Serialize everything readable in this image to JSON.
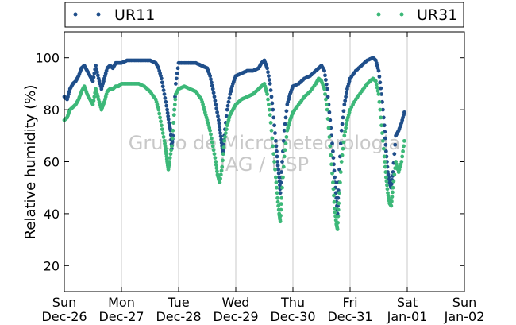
{
  "chart_data": {
    "type": "scatter",
    "ylabel": "Relative humidity (%)",
    "xlabel": "",
    "ylim": [
      10,
      110
    ],
    "yticks": [
      20,
      40,
      60,
      80,
      100
    ],
    "x_ticks": [
      {
        "day": "Sun",
        "date": "Dec-26"
      },
      {
        "day": "Mon",
        "date": "Dec-27"
      },
      {
        "day": "Tue",
        "date": "Dec-28"
      },
      {
        "day": "Wed",
        "date": "Dec-29"
      },
      {
        "day": "Thu",
        "date": "Dec-30"
      },
      {
        "day": "Fri",
        "date": "Dec-31"
      },
      {
        "day": "Sat",
        "date": "Jan-01"
      },
      {
        "day": "Sun",
        "date": "Jan-02"
      }
    ],
    "grid": "vertical",
    "legend": "top",
    "watermark": [
      "Grupo de Micrometeorologia",
      "IAG / USP"
    ],
    "series": [
      {
        "name": "UR11",
        "color": "#1f4e8a",
        "points": [
          [
            0.0,
            85
          ],
          [
            0.05,
            84
          ],
          [
            0.1,
            88
          ],
          [
            0.15,
            90
          ],
          [
            0.2,
            91
          ],
          [
            0.25,
            93
          ],
          [
            0.3,
            96
          ],
          [
            0.35,
            97
          ],
          [
            0.4,
            95
          ],
          [
            0.45,
            93
          ],
          [
            0.5,
            91
          ],
          [
            0.55,
            97
          ],
          [
            0.6,
            92
          ],
          [
            0.65,
            88
          ],
          [
            0.7,
            92
          ],
          [
            0.75,
            96
          ],
          [
            0.8,
            97
          ],
          [
            0.85,
            96
          ],
          [
            0.9,
            98
          ],
          [
            0.95,
            98
          ],
          [
            1.0,
            98
          ],
          [
            1.1,
            99
          ],
          [
            1.2,
            99
          ],
          [
            1.3,
            99
          ],
          [
            1.4,
            99
          ],
          [
            1.5,
            99
          ],
          [
            1.6,
            98
          ],
          [
            1.65,
            96
          ],
          [
            1.7,
            92
          ],
          [
            1.75,
            86
          ],
          [
            1.8,
            80
          ],
          [
            1.83,
            75
          ],
          [
            1.86,
            72
          ],
          [
            1.88,
            65
          ],
          [
            1.9,
            70
          ],
          [
            1.95,
            90
          ],
          [
            2.0,
            98
          ],
          [
            2.1,
            98
          ],
          [
            2.2,
            98
          ],
          [
            2.3,
            98
          ],
          [
            2.4,
            97
          ],
          [
            2.5,
            96
          ],
          [
            2.55,
            93
          ],
          [
            2.6,
            88
          ],
          [
            2.65,
            82
          ],
          [
            2.7,
            76
          ],
          [
            2.73,
            71
          ],
          [
            2.76,
            66
          ],
          [
            2.78,
            63
          ],
          [
            2.8,
            70
          ],
          [
            2.85,
            80
          ],
          [
            2.9,
            86
          ],
          [
            2.95,
            90
          ],
          [
            3.0,
            93
          ],
          [
            3.1,
            94
          ],
          [
            3.2,
            95
          ],
          [
            3.3,
            95
          ],
          [
            3.4,
            96
          ],
          [
            3.45,
            98
          ],
          [
            3.5,
            99
          ],
          [
            3.55,
            96
          ],
          [
            3.6,
            90
          ],
          [
            3.65,
            80
          ],
          [
            3.7,
            68
          ],
          [
            3.73,
            60
          ],
          [
            3.76,
            54
          ],
          [
            3.78,
            48
          ],
          [
            3.8,
            56
          ],
          [
            3.85,
            72
          ],
          [
            3.9,
            82
          ],
          [
            3.95,
            86
          ],
          [
            4.0,
            89
          ],
          [
            4.1,
            90
          ],
          [
            4.2,
            92
          ],
          [
            4.3,
            93
          ],
          [
            4.4,
            95
          ],
          [
            4.45,
            96
          ],
          [
            4.5,
            97
          ],
          [
            4.55,
            95
          ],
          [
            4.6,
            88
          ],
          [
            4.65,
            76
          ],
          [
            4.7,
            64
          ],
          [
            4.73,
            54
          ],
          [
            4.76,
            46
          ],
          [
            4.78,
            40
          ],
          [
            4.8,
            52
          ],
          [
            4.85,
            72
          ],
          [
            4.9,
            82
          ],
          [
            4.95,
            88
          ],
          [
            5.0,
            92
          ],
          [
            5.1,
            95
          ],
          [
            5.2,
            97
          ],
          [
            5.3,
            99
          ],
          [
            5.4,
            100
          ],
          [
            5.45,
            99
          ],
          [
            5.5,
            95
          ],
          [
            5.55,
            86
          ],
          [
            5.6,
            74
          ],
          [
            5.63,
            64
          ],
          [
            5.66,
            56
          ],
          [
            5.69,
            52
          ],
          [
            5.72,
            50
          ],
          [
            5.75,
            56
          ],
          [
            5.8,
            70
          ],
          [
            5.85,
            72
          ],
          [
            5.9,
            75
          ],
          [
            5.95,
            79
          ]
        ]
      },
      {
        "name": "UR31",
        "color": "#3cb878",
        "points": [
          [
            0.0,
            76
          ],
          [
            0.05,
            77
          ],
          [
            0.1,
            80
          ],
          [
            0.15,
            81
          ],
          [
            0.2,
            82
          ],
          [
            0.25,
            84
          ],
          [
            0.3,
            87
          ],
          [
            0.35,
            89
          ],
          [
            0.4,
            86
          ],
          [
            0.45,
            84
          ],
          [
            0.5,
            82
          ],
          [
            0.55,
            88
          ],
          [
            0.6,
            84
          ],
          [
            0.65,
            80
          ],
          [
            0.7,
            83
          ],
          [
            0.75,
            87
          ],
          [
            0.8,
            88
          ],
          [
            0.85,
            88
          ],
          [
            0.9,
            89
          ],
          [
            0.95,
            89
          ],
          [
            1.0,
            90
          ],
          [
            1.1,
            90
          ],
          [
            1.2,
            90
          ],
          [
            1.3,
            90
          ],
          [
            1.4,
            89
          ],
          [
            1.5,
            87
          ],
          [
            1.6,
            84
          ],
          [
            1.65,
            80
          ],
          [
            1.7,
            74
          ],
          [
            1.75,
            68
          ],
          [
            1.78,
            64
          ],
          [
            1.8,
            60
          ],
          [
            1.82,
            57
          ],
          [
            1.84,
            60
          ],
          [
            1.88,
            66
          ],
          [
            1.92,
            78
          ],
          [
            1.95,
            86
          ],
          [
            2.0,
            88
          ],
          [
            2.1,
            89
          ],
          [
            2.2,
            88
          ],
          [
            2.3,
            87
          ],
          [
            2.4,
            84
          ],
          [
            2.45,
            80
          ],
          [
            2.5,
            76
          ],
          [
            2.55,
            72
          ],
          [
            2.6,
            66
          ],
          [
            2.65,
            60
          ],
          [
            2.68,
            55
          ],
          [
            2.72,
            52
          ],
          [
            2.76,
            58
          ],
          [
            2.8,
            68
          ],
          [
            2.85,
            74
          ],
          [
            2.9,
            78
          ],
          [
            2.95,
            80
          ],
          [
            3.0,
            82
          ],
          [
            3.1,
            84
          ],
          [
            3.2,
            85
          ],
          [
            3.3,
            86
          ],
          [
            3.4,
            88
          ],
          [
            3.45,
            89
          ],
          [
            3.5,
            90
          ],
          [
            3.55,
            86
          ],
          [
            3.6,
            78
          ],
          [
            3.65,
            66
          ],
          [
            3.7,
            54
          ],
          [
            3.73,
            46
          ],
          [
            3.76,
            40
          ],
          [
            3.78,
            37
          ],
          [
            3.8,
            46
          ],
          [
            3.85,
            62
          ],
          [
            3.9,
            72
          ],
          [
            3.95,
            76
          ],
          [
            4.0,
            79
          ],
          [
            4.1,
            82
          ],
          [
            4.2,
            85
          ],
          [
            4.3,
            87
          ],
          [
            4.4,
            90
          ],
          [
            4.45,
            92
          ],
          [
            4.5,
            91
          ],
          [
            4.55,
            88
          ],
          [
            4.6,
            80
          ],
          [
            4.65,
            66
          ],
          [
            4.7,
            52
          ],
          [
            4.73,
            42
          ],
          [
            4.76,
            36
          ],
          [
            4.78,
            34
          ],
          [
            4.8,
            44
          ],
          [
            4.85,
            60
          ],
          [
            4.9,
            70
          ],
          [
            4.95,
            76
          ],
          [
            5.0,
            80
          ],
          [
            5.1,
            84
          ],
          [
            5.2,
            87
          ],
          [
            5.3,
            90
          ],
          [
            5.4,
            92
          ],
          [
            5.45,
            91
          ],
          [
            5.5,
            86
          ],
          [
            5.55,
            74
          ],
          [
            5.6,
            62
          ],
          [
            5.63,
            54
          ],
          [
            5.66,
            48
          ],
          [
            5.69,
            44
          ],
          [
            5.72,
            43
          ],
          [
            5.75,
            50
          ],
          [
            5.8,
            60
          ],
          [
            5.85,
            56
          ],
          [
            5.9,
            60
          ],
          [
            5.95,
            68
          ]
        ]
      }
    ]
  }
}
